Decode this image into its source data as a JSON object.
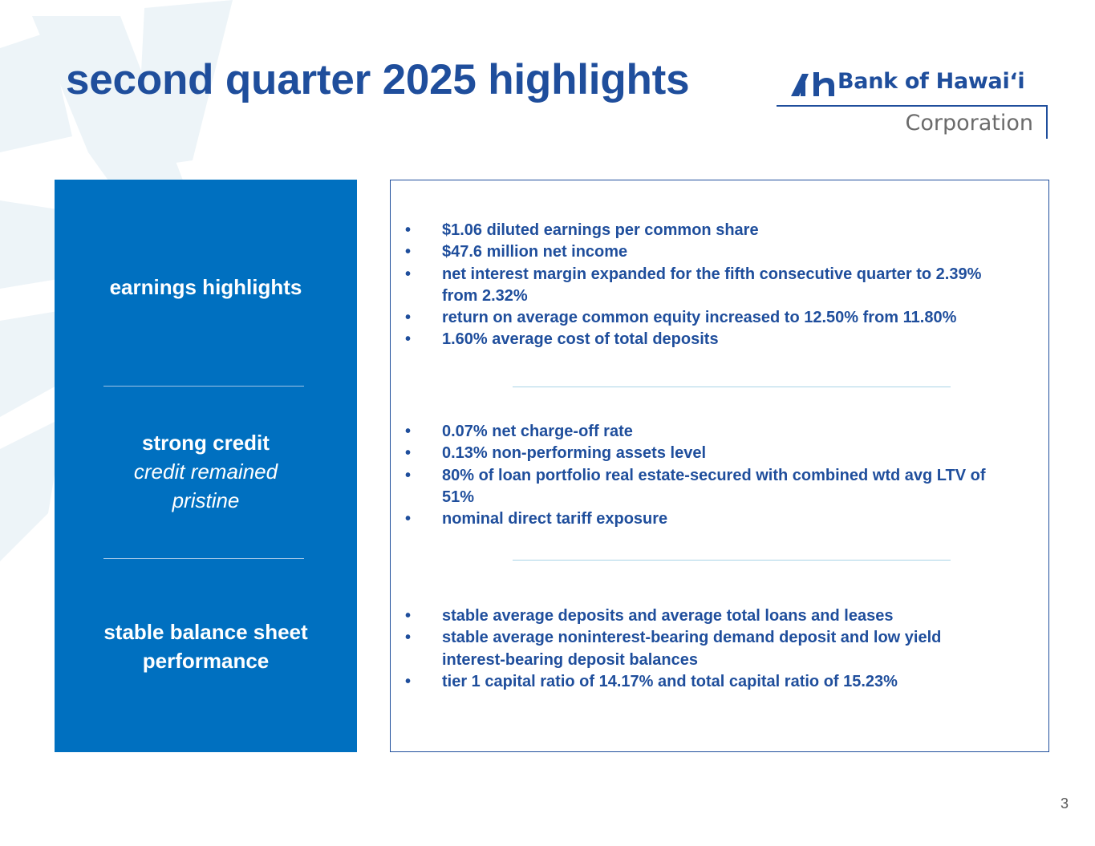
{
  "slide": {
    "title": "second quarter 2025 highlights",
    "page_number": "3"
  },
  "logo": {
    "name": "Bank of Hawaiʻi",
    "subtitle": "Corporation",
    "brand_color": "#1f4e9c"
  },
  "colors": {
    "title": "#1f4e9c",
    "left_panel": "#0070c0",
    "bullet_text": "#1f4e9c",
    "divider": "#a9d3e6"
  },
  "categories": [
    {
      "heading": "earnings highlights",
      "subheading": ""
    },
    {
      "heading": "strong credit",
      "subheading": "credit remained pristine"
    },
    {
      "heading": "stable balance sheet performance",
      "subheading": ""
    }
  ],
  "sections": [
    {
      "bullets": [
        "$1.06 diluted earnings per common share",
        "$47.6 million net income",
        "net interest margin expanded for the fifth consecutive quarter to 2.39% from 2.32%",
        "return on average common equity increased to 12.50% from 11.80%",
        "1.60% average cost of total deposits"
      ]
    },
    {
      "bullets": [
        "0.07% net charge-off rate",
        "0.13% non-performing assets level",
        "80% of loan portfolio real estate-secured with combined wtd avg LTV of 51%",
        "nominal direct tariff exposure"
      ]
    },
    {
      "bullets": [
        "stable average deposits and average total loans and leases",
        "stable average noninterest-bearing demand deposit and low yield interest-bearing deposit balances",
        "tier 1 capital ratio of 14.17% and total capital ratio of 15.23%"
      ]
    }
  ],
  "bullet_symbol": "•"
}
